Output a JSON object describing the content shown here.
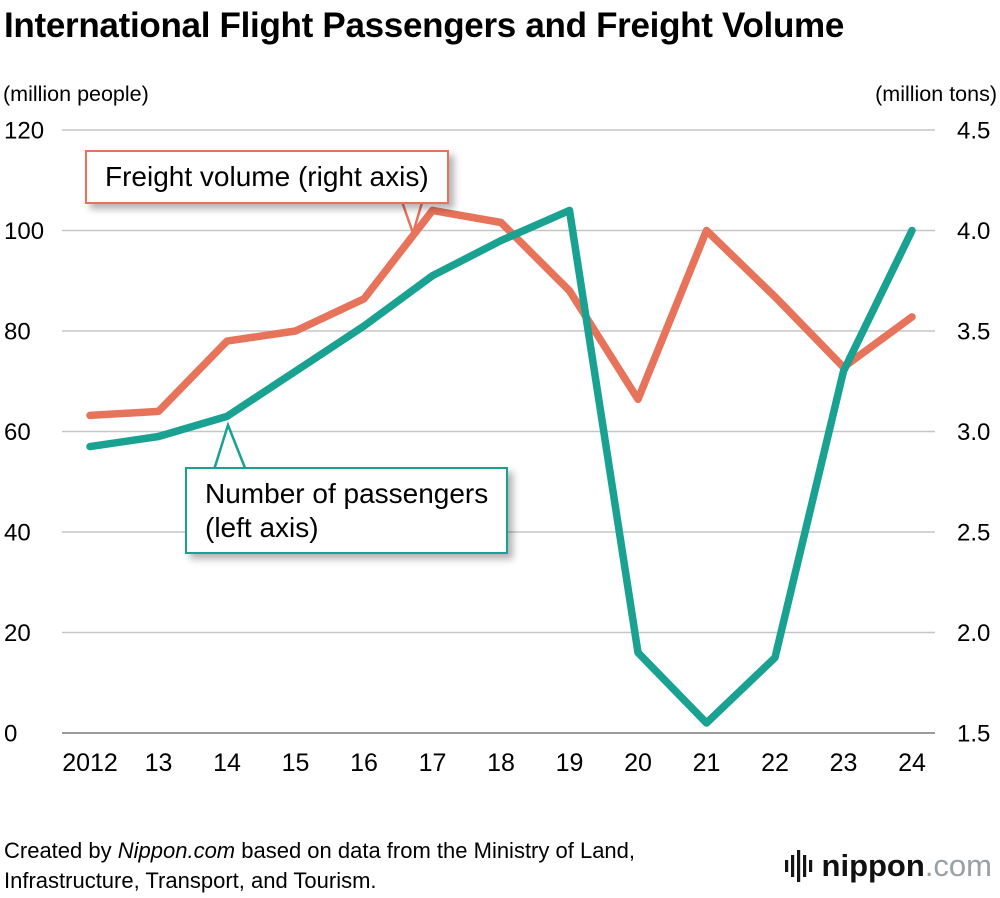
{
  "title": "International Flight Passengers and Freight Volume",
  "annotations": {
    "freight": "Freight volume (right axis)",
    "passengers_line1": "Number of passengers",
    "passengers_line2": "(left axis)"
  },
  "footer": {
    "prefix": "Created by ",
    "source_name": "Nippon.com",
    "suffix": " based on data from the Ministry of Land, Infrastructure, Transport, and Tourism."
  },
  "logo": {
    "name": "nippon",
    "tld": ".com"
  },
  "colors": {
    "passengers": "#19a192",
    "freight": "#e8735b",
    "grid": "#c6c6c6",
    "baseline": "#9b9b9b"
  },
  "chart_data": {
    "type": "line",
    "categories": [
      "2012",
      "13",
      "14",
      "15",
      "16",
      "17",
      "18",
      "19",
      "20",
      "21",
      "22",
      "23",
      "24"
    ],
    "series": [
      {
        "name": "Number of passengers (left axis)",
        "axis": "left",
        "color": "#19a192",
        "values": [
          57,
          59,
          63,
          72,
          81,
          91,
          98,
          104,
          16,
          2,
          15,
          72,
          100
        ]
      },
      {
        "name": "Freight volume (right axis)",
        "axis": "right",
        "color": "#e8735b",
        "values": [
          3.08,
          3.1,
          3.45,
          3.5,
          3.66,
          4.1,
          4.04,
          3.7,
          3.16,
          4.0,
          3.67,
          3.32,
          3.57
        ]
      }
    ],
    "left_axis": {
      "label": "(million people)",
      "min": 0,
      "max": 120,
      "step": 20
    },
    "right_axis": {
      "label": "(million tons)",
      "min": 1.5,
      "max": 4.5,
      "step": 0.5
    },
    "grid": true,
    "legend_position": "callouts-on-chart"
  }
}
